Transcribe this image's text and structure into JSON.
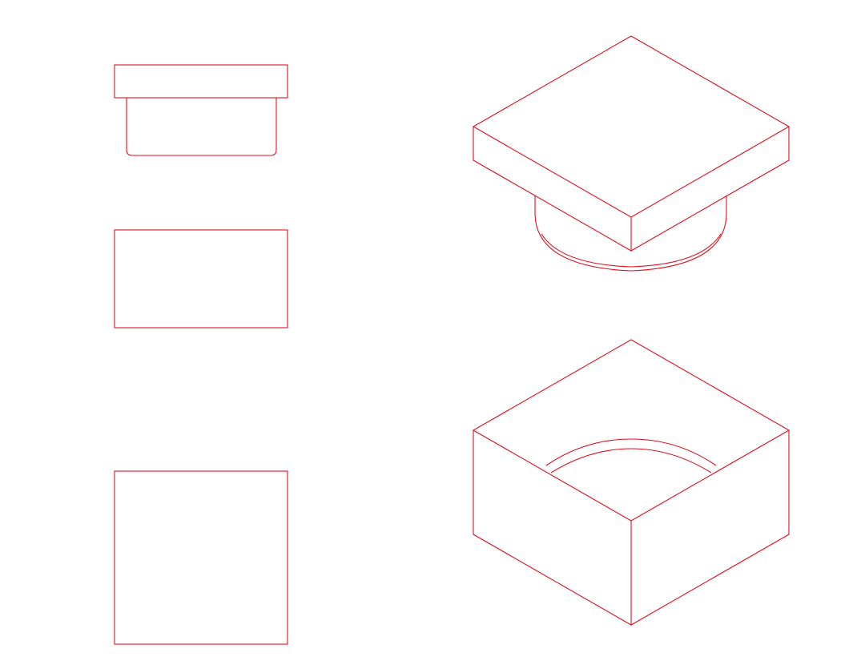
{
  "drawing": {
    "background": "#ffffff",
    "line_color": "#e0101e",
    "views": [
      {
        "id": "front-view",
        "kind": "orthographic"
      },
      {
        "id": "side-view",
        "kind": "orthographic"
      },
      {
        "id": "top-view",
        "kind": "orthographic"
      },
      {
        "id": "isometric-top",
        "kind": "isometric"
      },
      {
        "id": "isometric-bottom",
        "kind": "isometric"
      }
    ]
  }
}
